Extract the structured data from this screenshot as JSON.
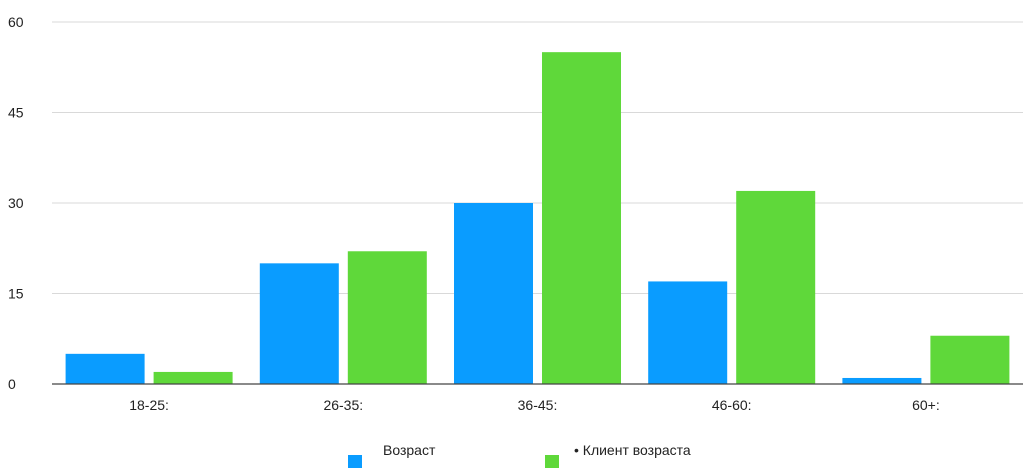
{
  "chart_data": {
    "type": "bar",
    "categories": [
      "18-25:",
      "26-35:",
      "36-45:",
      "46-60:",
      "60+:"
    ],
    "series": [
      {
        "name": "Возраст",
        "color": "#0a9cff",
        "values": [
          5,
          20,
          30,
          17,
          1
        ]
      },
      {
        "name": "• Клиент возраста",
        "color": "#5fd83a",
        "values": [
          2,
          22,
          55,
          32,
          8
        ]
      }
    ],
    "ylim": [
      0,
      60
    ],
    "yticks": [
      0,
      15,
      30,
      45,
      60
    ],
    "title": "",
    "xlabel": "",
    "ylabel": "",
    "grid": true,
    "legend": "bottom-center"
  }
}
